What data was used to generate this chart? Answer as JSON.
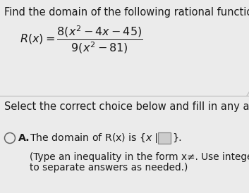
{
  "background_color": "#ebebeb",
  "title_text": "Find the domain of the following rational function.",
  "title_fontsize": 10.5,
  "formula_numerator": "8\\left(x^2-4x-45\\right)",
  "formula_denominator": "9\\left(x^2-81\\right)",
  "formula_fontsize": 11.5,
  "select_text": "Select the correct choice below and fill in any answer b",
  "select_fontsize": 10.5,
  "choiceA_text": "The domain of R(x) is $\\{x\\,|$",
  "choiceA_sub1": "(Type an inequality in the form x",
  "choiceA_sub2": ". Use integer",
  "choiceA_sub3": "to separate answers as needed.)",
  "choiceA_fontsize": 10.2,
  "choiceA_sub_fontsize": 9.8,
  "line_color": "#c0c0c0",
  "text_color": "#1a1a1a",
  "circle_color": "#666666",
  "box_face": "#cccccc",
  "box_edge": "#888888"
}
